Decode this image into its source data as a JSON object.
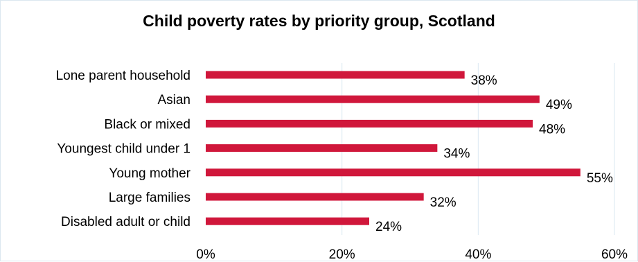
{
  "chart_data": {
    "type": "bar",
    "orientation": "horizontal",
    "title": "Child poverty rates by priority group, Scotland",
    "categories": [
      "Lone parent household",
      "Asian",
      "Black or mixed",
      "Youngest child under 1",
      "Young mother",
      "Large families",
      "Disabled adult or child"
    ],
    "values": [
      38,
      49,
      48,
      34,
      55,
      32,
      24
    ],
    "value_labels": [
      "38%",
      "49%",
      "48%",
      "34%",
      "55%",
      "32%",
      "24%"
    ],
    "xlim": [
      0,
      60
    ],
    "x_ticks": [
      0,
      20,
      40,
      60
    ],
    "x_tick_labels": [
      "0%",
      "20%",
      "40%",
      "60%"
    ],
    "grid": "vertical",
    "legend": "none",
    "bar_color": "#d0173b",
    "grid_color": "#d9e7f1"
  }
}
